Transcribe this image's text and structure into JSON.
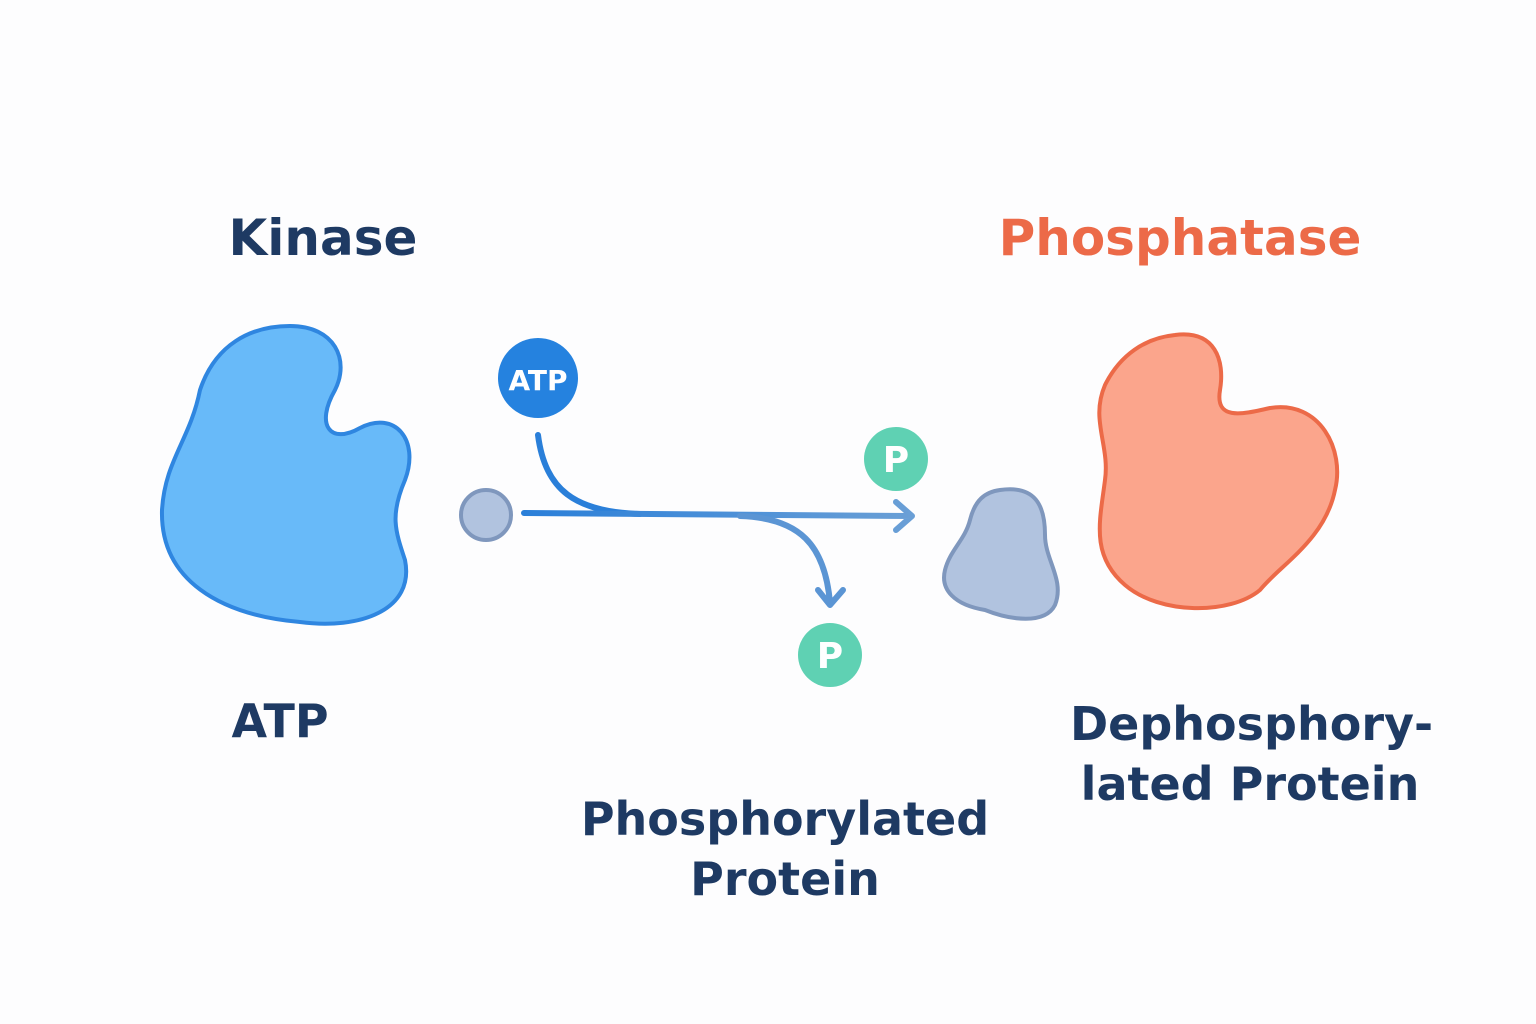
{
  "title_left": "Kinase",
  "title_right": "Phosphatase",
  "atp_badge": "ATP",
  "phosphate_badge": "P",
  "label_atp": "ATP",
  "label_phosphorylated": [
    "Phosphorylated",
    "Protein"
  ],
  "label_dephosphorylated": [
    "Dephosphory-",
    "lated Protein"
  ],
  "colors": {
    "kinase_fill": "#68baf9",
    "kinase_stroke": "#2f86e0",
    "phosphatase_fill": "#fba58c",
    "phosphatase_stroke": "#ec6a48",
    "phosphatase_title": "#ec6a48",
    "text": "#1e3a63",
    "atp": "#2582df",
    "phosphate": "#5fd1b3",
    "substrate_fill": "#b1c3df",
    "substrate_stroke": "#7f97bd",
    "arrow": "#3a86d8"
  }
}
